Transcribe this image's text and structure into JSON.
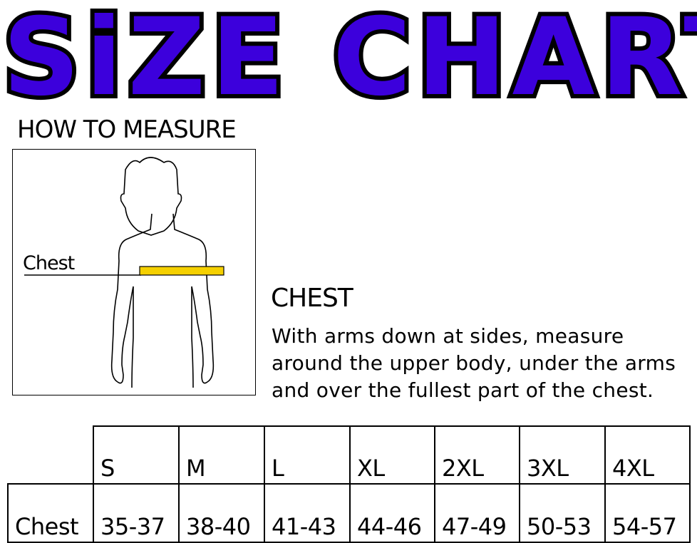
{
  "title": "SiZE CHART",
  "how_to_measure": "HOW TO MEASURE",
  "figure": {
    "chest_label": "Chest",
    "tape_color": "#f5d000"
  },
  "chest_section": {
    "heading": "CHEST",
    "description": "With arms down at sides, measure around the upper body, under the arms and over the fullest part of the chest."
  },
  "table": {
    "sizes": [
      "S",
      "M",
      "L",
      "XL",
      "2XL",
      "3XL",
      "4XL"
    ],
    "rows": [
      {
        "label": "Chest",
        "values": [
          "35-37",
          "38-40",
          "41-43",
          "44-46",
          "47-49",
          "50-53",
          "54-57"
        ]
      }
    ]
  },
  "colors": {
    "title_fill": "#3c00dc",
    "title_outline": "#000000"
  }
}
